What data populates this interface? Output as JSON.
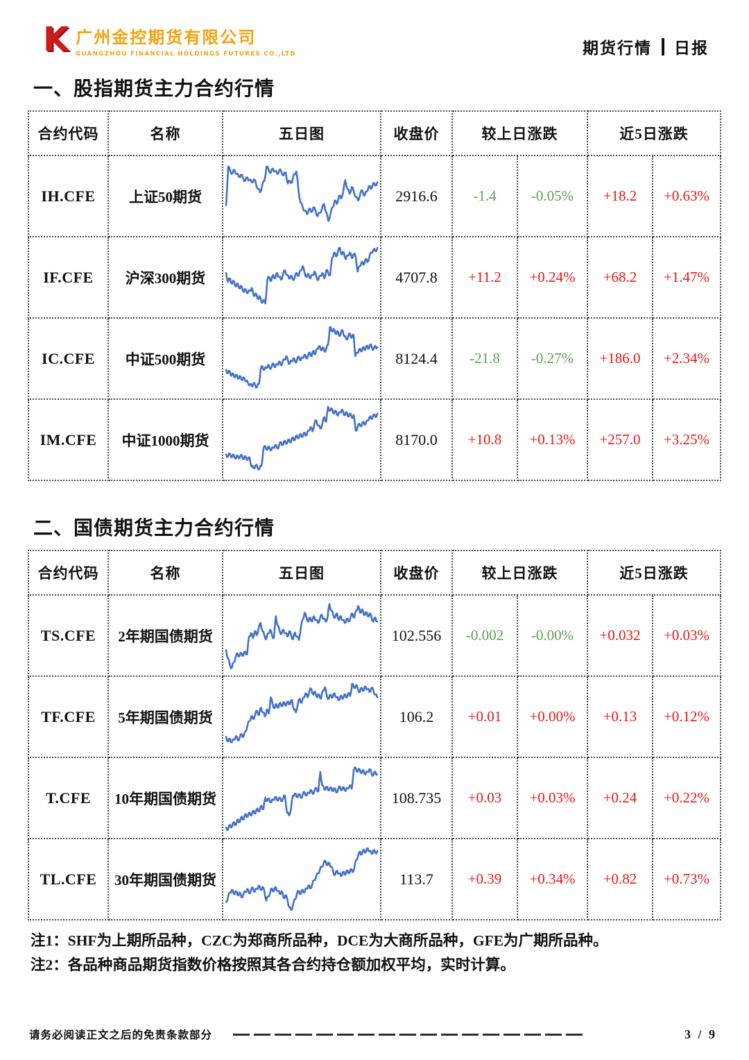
{
  "header": {
    "logo_mark": "K",
    "company_cn": "广州金控期货有限公司",
    "company_en": "GUANGZHOU FINANCIAL HOLDINGS FUTURES CO.,LTD",
    "report_type": "期货行情",
    "report_freq": "日报"
  },
  "colors": {
    "value_up": "#ed1414",
    "value_down": "#5f9e54",
    "chart_line": "#4472c4",
    "logo_red": "#cf1b1b",
    "logo_orange": "#f2a30e"
  },
  "sections": [
    {
      "title": "一、股指期货主力合约行情",
      "columns": {
        "code": "合约代码",
        "name": "名称",
        "chart": "五日图",
        "close": "收盘价",
        "chg": "较上日涨跌",
        "chg5": "近5日涨跌"
      },
      "rows": [
        {
          "code": "IH.CFE",
          "name": "上证50期货",
          "close": "2916.6",
          "chg": "-1.4",
          "chg_pct": "-0.05%",
          "chg5": "+18.2",
          "chg5_pct": "+0.63%",
          "spark": [
            38,
            95,
            88,
            85,
            90,
            84,
            80,
            83,
            78,
            74,
            79,
            75,
            72,
            76,
            70,
            62,
            57,
            68,
            74,
            95,
            90,
            86,
            92,
            88,
            84,
            90,
            87,
            82,
            86,
            70,
            74,
            72,
            84,
            88,
            60,
            42,
            35,
            30,
            25,
            33,
            28,
            35,
            30,
            22,
            27,
            33,
            40,
            28,
            15,
            25,
            35,
            45,
            40,
            52,
            48,
            58,
            75,
            62,
            55,
            65,
            58,
            50,
            45,
            55,
            60,
            52,
            58,
            66,
            62,
            70,
            67,
            72
          ]
        },
        {
          "code": "IF.CFE",
          "name": "沪深300期货",
          "close": "4707.8",
          "chg": "+11.2",
          "chg_pct": "+0.24%",
          "chg5": "+68.2",
          "chg5_pct": "+1.47%",
          "spark": [
            58,
            45,
            50,
            42,
            46,
            38,
            42,
            35,
            38,
            30,
            34,
            28,
            32,
            36,
            25,
            28,
            20,
            24,
            15,
            18,
            13,
            48,
            52,
            46,
            55,
            50,
            58,
            52,
            48,
            56,
            62,
            55,
            50,
            54,
            48,
            52,
            58,
            54,
            62,
            68,
            58,
            52,
            56,
            50,
            55,
            60,
            52,
            48,
            54,
            58,
            50,
            62,
            58,
            55,
            80,
            88,
            82,
            90,
            95,
            85,
            88,
            78,
            84,
            88,
            80,
            86,
            82,
            60,
            68,
            74,
            70,
            78,
            74,
            82,
            88,
            92,
            90,
            95
          ]
        },
        {
          "code": "IC.CFE",
          "name": "中证500期货",
          "close": "8124.4",
          "chg": "-21.8",
          "chg_pct": "-0.27%",
          "chg5": "+186.0",
          "chg5_pct": "+2.34%",
          "spark": [
            35,
            30,
            33,
            26,
            29,
            24,
            27,
            22,
            25,
            20,
            23,
            18,
            16,
            13,
            11,
            15,
            12,
            10,
            14,
            36,
            40,
            35,
            38,
            42,
            37,
            40,
            44,
            39,
            43,
            47,
            42,
            46,
            50,
            55,
            48,
            44,
            48,
            52,
            46,
            50,
            54,
            49,
            53,
            57,
            52,
            56,
            60,
            55,
            63,
            58,
            66,
            70,
            64,
            68,
            62,
            66,
            72,
            98,
            92,
            95,
            88,
            92,
            85,
            89,
            93,
            84,
            80,
            84,
            88,
            82,
            86,
            55,
            60,
            65,
            62,
            68,
            64,
            70,
            66,
            72,
            68,
            65,
            70,
            68
          ]
        },
        {
          "code": "IM.CFE",
          "name": "中证1000期货",
          "close": "8170.0",
          "chg": "+10.8",
          "chg_pct": "+0.13%",
          "chg5": "+257.0",
          "chg5_pct": "+3.25%",
          "spark": [
            30,
            27,
            31,
            26,
            29,
            24,
            28,
            25,
            29,
            23,
            27,
            22,
            25,
            12,
            10,
            14,
            11,
            9,
            13,
            38,
            42,
            37,
            41,
            36,
            40,
            44,
            39,
            43,
            48,
            44,
            50,
            46,
            52,
            48,
            55,
            51,
            58,
            54,
            60,
            56,
            62,
            58,
            65,
            70,
            64,
            75,
            80,
            72,
            68,
            74,
            85,
            78,
            100,
            94,
            97,
            90,
            94,
            87,
            92,
            96,
            88,
            92,
            86,
            90,
            84,
            88,
            65,
            70,
            75,
            72,
            78,
            74,
            80,
            85,
            82,
            88,
            85,
            90
          ]
        }
      ]
    },
    {
      "title": "二、国债期货主力合约行情",
      "columns": {
        "code": "合约代码",
        "name": "名称",
        "chart": "五日图",
        "close": "收盘价",
        "chg": "较上日涨跌",
        "chg5": "近5日涨跌"
      },
      "rows": [
        {
          "code": "TS.CFE",
          "name": "2年期国债期货",
          "close": "102.556",
          "chg": "-0.002",
          "chg_pct": "-0.00%",
          "chg5": "+0.032",
          "chg5_pct": "+0.03%",
          "spark": [
            30,
            18,
            8,
            4,
            12,
            20,
            25,
            21,
            26,
            22,
            28,
            24,
            50,
            55,
            48,
            58,
            52,
            62,
            70,
            58,
            52,
            46,
            55,
            60,
            52,
            48,
            80,
            66,
            58,
            54,
            60,
            55,
            50,
            58,
            52,
            46,
            56,
            50,
            45,
            62,
            75,
            85,
            78,
            72,
            78,
            72,
            80,
            74,
            70,
            76,
            82,
            76,
            72,
            78,
            98,
            88,
            82,
            78,
            84,
            74,
            80,
            74,
            70,
            76,
            72,
            78,
            84,
            78,
            88,
            95,
            85,
            90,
            82,
            86,
            80,
            84,
            78,
            72,
            78,
            72
          ]
        },
        {
          "code": "TF.CFE",
          "name": "5年期国债期货",
          "close": "106.2",
          "chg": "+0.01",
          "chg_pct": "+0.00%",
          "chg5": "+0.13",
          "chg5_pct": "+0.12%",
          "spark": [
            22,
            15,
            19,
            14,
            18,
            23,
            17,
            21,
            26,
            22,
            30,
            38,
            45,
            52,
            48,
            55,
            60,
            54,
            65,
            58,
            52,
            62,
            56,
            80,
            70,
            64,
            70,
            65,
            72,
            67,
            73,
            68,
            74,
            70,
            76,
            62,
            58,
            70,
            78,
            72,
            80,
            86,
            80,
            90,
            92,
            84,
            88,
            80,
            84,
            78,
            90,
            95,
            82,
            78,
            84,
            80,
            86,
            80,
            76,
            82,
            78,
            84,
            80,
            86,
            82,
            100,
            94,
            98,
            92,
            88,
            94,
            90,
            96,
            92,
            88,
            94,
            90,
            84,
            80
          ]
        },
        {
          "code": "T.CFE",
          "name": "10年期国债期货",
          "close": "108.735",
          "chg": "+0.03",
          "chg_pct": "+0.03%",
          "chg5": "+0.24",
          "chg5_pct": "+0.22%",
          "spark": [
            8,
            5,
            12,
            9,
            16,
            12,
            20,
            16,
            24,
            20,
            28,
            24,
            30,
            26,
            33,
            29,
            36,
            32,
            40,
            35,
            52,
            47,
            50,
            45,
            49,
            53,
            48,
            52,
            47,
            51,
            55,
            30,
            26,
            34,
            55,
            58,
            53,
            57,
            52,
            56,
            60,
            55,
            59,
            63,
            58,
            62,
            66,
            61,
            90,
            70,
            64,
            68,
            63,
            67,
            62,
            66,
            60,
            64,
            68,
            63,
            67,
            62,
            66,
            70,
            65,
            92,
            96,
            90,
            94,
            88,
            92,
            86,
            90,
            94,
            88,
            85,
            90,
            86
          ]
        },
        {
          "code": "TL.CFE",
          "name": "30年期国债期货",
          "close": "113.7",
          "chg": "+0.39",
          "chg_pct": "+0.34%",
          "chg5": "+0.82",
          "chg5_pct": "+0.73%",
          "spark": [
            18,
            25,
            32,
            36,
            30,
            34,
            28,
            32,
            25,
            29,
            33,
            37,
            31,
            35,
            39,
            33,
            37,
            42,
            36,
            40,
            34,
            20,
            26,
            32,
            38,
            34,
            40,
            34,
            30,
            34,
            24,
            28,
            22,
            10,
            6,
            14,
            22,
            30,
            34,
            30,
            36,
            32,
            38,
            42,
            38,
            44,
            50,
            55,
            60,
            65,
            70,
            75,
            78,
            72,
            75,
            70,
            62,
            58,
            64,
            60,
            56,
            62,
            58,
            64,
            60,
            66,
            62,
            68,
            80,
            86,
            92,
            88,
            95,
            91,
            97,
            93,
            89,
            94,
            90,
            93
          ]
        }
      ]
    }
  ],
  "notes": [
    "注1：SHF为上期所品种，CZC为郑商所品种，DCE为大商所品种，GFE为广期所品种。",
    "注2：各品种商品期货指数价格按照其各合约持仓额加权平均，实时计算。"
  ],
  "footer": {
    "disclaimer": "请务必阅读正文之后的免责条款部分",
    "page": "3 / 9"
  }
}
